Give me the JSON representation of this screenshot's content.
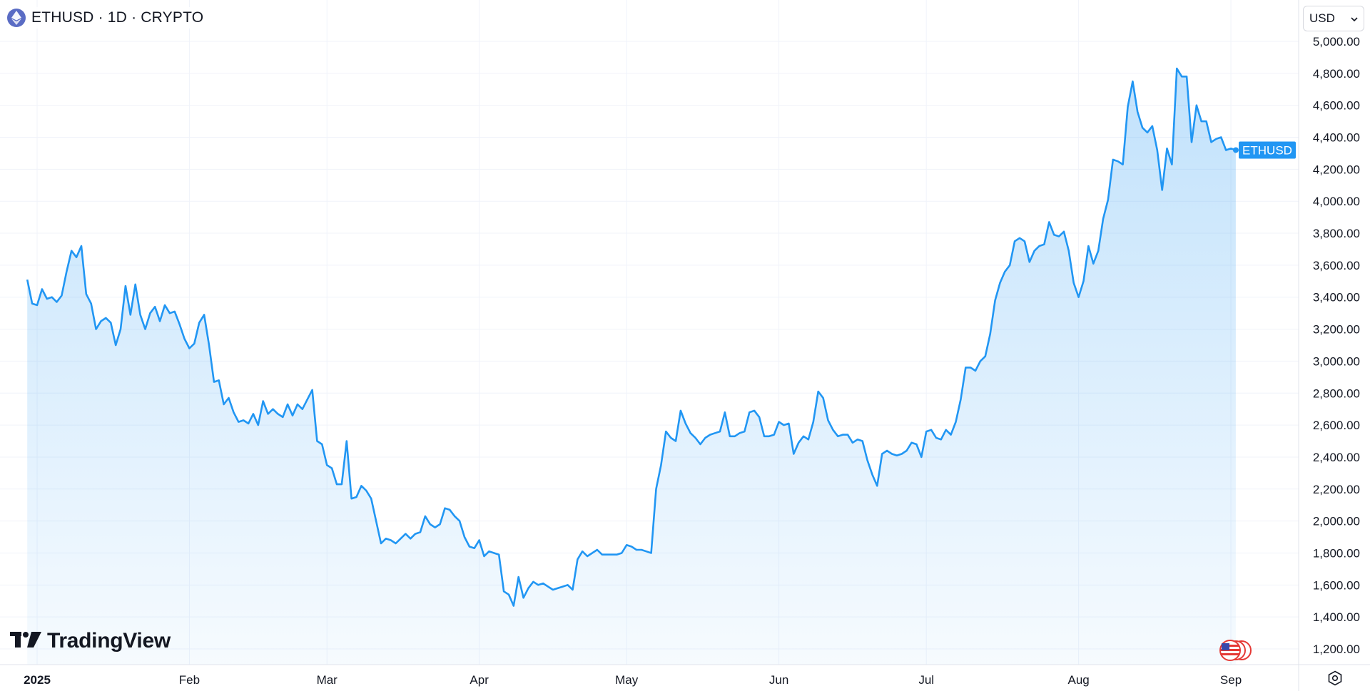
{
  "header": {
    "symbol_line": "ETHUSD · 1D · CRYPTO",
    "symbol_icon": "ethereum-icon"
  },
  "currency": {
    "selected": "USD",
    "caret_icon": "chevron-down-icon"
  },
  "branding": {
    "logo_text": "TradingView",
    "logo_icon": "tradingview-logo-icon"
  },
  "colors": {
    "line": "#2196f3",
    "fill_top": "#2196f3",
    "label_bg": "#2196f3",
    "grid": "#f0f3fa",
    "axis_text": "#131722"
  },
  "chart_data": {
    "type": "area",
    "series": [
      {
        "name": "ETHUSD",
        "x": [
          "2024-12-30",
          "2024-12-31",
          "2025-01-01",
          "2025-01-02",
          "2025-01-03",
          "2025-01-04",
          "2025-01-05",
          "2025-01-06",
          "2025-01-07",
          "2025-01-08",
          "2025-01-09",
          "2025-01-10",
          "2025-01-11",
          "2025-01-12",
          "2025-01-13",
          "2025-01-14",
          "2025-01-15",
          "2025-01-16",
          "2025-01-17",
          "2025-01-18",
          "2025-01-19",
          "2025-01-20",
          "2025-01-21",
          "2025-01-22",
          "2025-01-23",
          "2025-01-24",
          "2025-01-25",
          "2025-01-26",
          "2025-01-27",
          "2025-01-28",
          "2025-01-29",
          "2025-01-30",
          "2025-01-31",
          "2025-02-01",
          "2025-02-02",
          "2025-02-03",
          "2025-02-04",
          "2025-02-05",
          "2025-02-06",
          "2025-02-07",
          "2025-02-08",
          "2025-02-09",
          "2025-02-10",
          "2025-02-11",
          "2025-02-12",
          "2025-02-13",
          "2025-02-14",
          "2025-02-15",
          "2025-02-16",
          "2025-02-17",
          "2025-02-18",
          "2025-02-19",
          "2025-02-20",
          "2025-02-21",
          "2025-02-22",
          "2025-02-23",
          "2025-02-24",
          "2025-02-25",
          "2025-02-26",
          "2025-02-27",
          "2025-02-28",
          "2025-03-01",
          "2025-03-02",
          "2025-03-03",
          "2025-03-04",
          "2025-03-05",
          "2025-03-06",
          "2025-03-07",
          "2025-03-08",
          "2025-03-09",
          "2025-03-10",
          "2025-03-11",
          "2025-03-12",
          "2025-03-13",
          "2025-03-14",
          "2025-03-15",
          "2025-03-16",
          "2025-03-17",
          "2025-03-18",
          "2025-03-19",
          "2025-03-20",
          "2025-03-21",
          "2025-03-22",
          "2025-03-23",
          "2025-03-24",
          "2025-03-25",
          "2025-03-26",
          "2025-03-27",
          "2025-03-28",
          "2025-03-29",
          "2025-03-30",
          "2025-03-31",
          "2025-04-01",
          "2025-04-02",
          "2025-04-03",
          "2025-04-04",
          "2025-04-05",
          "2025-04-06",
          "2025-04-07",
          "2025-04-08",
          "2025-04-09",
          "2025-04-10",
          "2025-04-11",
          "2025-04-12",
          "2025-04-13",
          "2025-04-14",
          "2025-04-15",
          "2025-04-16",
          "2025-04-17",
          "2025-04-18",
          "2025-04-19",
          "2025-04-20",
          "2025-04-21",
          "2025-04-22",
          "2025-04-23",
          "2025-04-24",
          "2025-04-25",
          "2025-04-26",
          "2025-04-27",
          "2025-04-28",
          "2025-04-29",
          "2025-04-30",
          "2025-05-01",
          "2025-05-02",
          "2025-05-03",
          "2025-05-04",
          "2025-05-05",
          "2025-05-06",
          "2025-05-07",
          "2025-05-08",
          "2025-05-09",
          "2025-05-10",
          "2025-05-11",
          "2025-05-12",
          "2025-05-13",
          "2025-05-14",
          "2025-05-15",
          "2025-05-16",
          "2025-05-17",
          "2025-05-18",
          "2025-05-19",
          "2025-05-20",
          "2025-05-21",
          "2025-05-22",
          "2025-05-23",
          "2025-05-24",
          "2025-05-25",
          "2025-05-26",
          "2025-05-27",
          "2025-05-28",
          "2025-05-29",
          "2025-05-30",
          "2025-05-31",
          "2025-06-01",
          "2025-06-02",
          "2025-06-03",
          "2025-06-04",
          "2025-06-05",
          "2025-06-06",
          "2025-06-07",
          "2025-06-08",
          "2025-06-09",
          "2025-06-10",
          "2025-06-11",
          "2025-06-12",
          "2025-06-13",
          "2025-06-14",
          "2025-06-15",
          "2025-06-16",
          "2025-06-17",
          "2025-06-18",
          "2025-06-19",
          "2025-06-20",
          "2025-06-21",
          "2025-06-22",
          "2025-06-23",
          "2025-06-24",
          "2025-06-25",
          "2025-06-26",
          "2025-06-27",
          "2025-06-28",
          "2025-06-29",
          "2025-06-30",
          "2025-07-01",
          "2025-07-02",
          "2025-07-03",
          "2025-07-04",
          "2025-07-05",
          "2025-07-06",
          "2025-07-07",
          "2025-07-08",
          "2025-07-09",
          "2025-07-10",
          "2025-07-11",
          "2025-07-12",
          "2025-07-13",
          "2025-07-14",
          "2025-07-15",
          "2025-07-16",
          "2025-07-17",
          "2025-07-18",
          "2025-07-19",
          "2025-07-20",
          "2025-07-21",
          "2025-07-22",
          "2025-07-23",
          "2025-07-24",
          "2025-07-25",
          "2025-07-26",
          "2025-07-27",
          "2025-07-28",
          "2025-07-29",
          "2025-07-30",
          "2025-07-31",
          "2025-08-01",
          "2025-08-02",
          "2025-08-03",
          "2025-08-04",
          "2025-08-05",
          "2025-08-06",
          "2025-08-07",
          "2025-08-08",
          "2025-08-09",
          "2025-08-10",
          "2025-08-11",
          "2025-08-12",
          "2025-08-13",
          "2025-08-14",
          "2025-08-15",
          "2025-08-16",
          "2025-08-17",
          "2025-08-18",
          "2025-08-19",
          "2025-08-20",
          "2025-08-21",
          "2025-08-22",
          "2025-08-23",
          "2025-08-24",
          "2025-08-25",
          "2025-08-26",
          "2025-08-27",
          "2025-08-28",
          "2025-08-29",
          "2025-08-30",
          "2025-08-31",
          "2025-09-01",
          "2025-09-02"
        ],
        "values": [
          3510,
          3360,
          3350,
          3450,
          3390,
          3400,
          3370,
          3410,
          3560,
          3690,
          3650,
          3720,
          3420,
          3360,
          3200,
          3250,
          3270,
          3240,
          3100,
          3200,
          3470,
          3290,
          3480,
          3290,
          3200,
          3300,
          3340,
          3250,
          3350,
          3300,
          3310,
          3230,
          3140,
          3080,
          3110,
          3240,
          3290,
          3100,
          2870,
          2880,
          2730,
          2770,
          2680,
          2620,
          2630,
          2610,
          2670,
          2600,
          2750,
          2670,
          2700,
          2670,
          2650,
          2730,
          2660,
          2730,
          2700,
          2760,
          2820,
          2500,
          2480,
          2350,
          2330,
          2230,
          2230,
          2500,
          2140,
          2150,
          2220,
          2190,
          2140,
          2000,
          1860,
          1890,
          1880,
          1860,
          1890,
          1920,
          1890,
          1920,
          1930,
          2030,
          1980,
          1960,
          1980,
          2080,
          2070,
          2030,
          2000,
          1900,
          1840,
          1830,
          1880,
          1780,
          1810,
          1800,
          1790,
          1560,
          1540,
          1470,
          1650,
          1520,
          1580,
          1620,
          1600,
          1610,
          1590,
          1570,
          1580,
          1590,
          1600,
          1570,
          1760,
          1810,
          1780,
          1800,
          1820,
          1790,
          1790,
          1790,
          1790,
          1800,
          1850,
          1840,
          1820,
          1820,
          1810,
          1800,
          2200,
          2350,
          2560,
          2520,
          2500,
          2690,
          2610,
          2550,
          2520,
          2480,
          2520,
          2540,
          2550,
          2560,
          2680,
          2530,
          2530,
          2550,
          2560,
          2680,
          2690,
          2650,
          2530,
          2530,
          2540,
          2620,
          2600,
          2610,
          2420,
          2490,
          2530,
          2510,
          2620,
          2810,
          2770,
          2630,
          2570,
          2530,
          2540,
          2540,
          2490,
          2510,
          2500,
          2380,
          2290,
          2220,
          2420,
          2440,
          2420,
          2410,
          2420,
          2440,
          2490,
          2480,
          2400,
          2560,
          2570,
          2520,
          2510,
          2570,
          2540,
          2620,
          2760,
          2960,
          2960,
          2940,
          3000,
          3030,
          3170,
          3380,
          3490,
          3560,
          3600,
          3750,
          3770,
          3750,
          3620,
          3690,
          3720,
          3730,
          3870,
          3790,
          3780,
          3810,
          3690,
          3490,
          3400,
          3500,
          3720,
          3610,
          3690,
          3890,
          4010,
          4260,
          4250,
          4230,
          4590,
          4750,
          4560,
          4460,
          4430,
          4470,
          4320,
          4070,
          4330,
          4230,
          4830,
          4780,
          4780,
          4370,
          4600,
          4500,
          4500,
          4370,
          4390,
          4400,
          4320,
          4330,
          4320
        ]
      }
    ],
    "xaxis": {
      "labels": [
        "2025",
        "Feb",
        "Mar",
        "Apr",
        "May",
        "Jun",
        "Jul",
        "Aug",
        "Sep"
      ],
      "label_dates": [
        "2025-01-01",
        "2025-02-01",
        "2025-03-01",
        "2025-04-01",
        "2025-05-01",
        "2025-06-01",
        "2025-07-01",
        "2025-08-01",
        "2025-09-01"
      ]
    },
    "yaxis": {
      "position": "right",
      "ticks": [
        1200,
        1400,
        1600,
        1800,
        2000,
        2200,
        2400,
        2600,
        2800,
        3000,
        3200,
        3400,
        3600,
        3800,
        4000,
        4200,
        4400,
        4600,
        4800,
        5000
      ],
      "tick_labels": [
        "1,200.00",
        "1,400.00",
        "1,600.00",
        "1,800.00",
        "2,000.00",
        "2,200.00",
        "2,400.00",
        "2,600.00",
        "2,800.00",
        "3,000.00",
        "3,200.00",
        "3,400.00",
        "3,600.00",
        "3,800.00",
        "4,000.00",
        "4,200.00",
        "4,400.00",
        "4,600.00",
        "4,800.00",
        "5,000.00"
      ],
      "range": [
        1100,
        5150
      ]
    },
    "last_value_label": "ETHUSD",
    "grid": true
  }
}
